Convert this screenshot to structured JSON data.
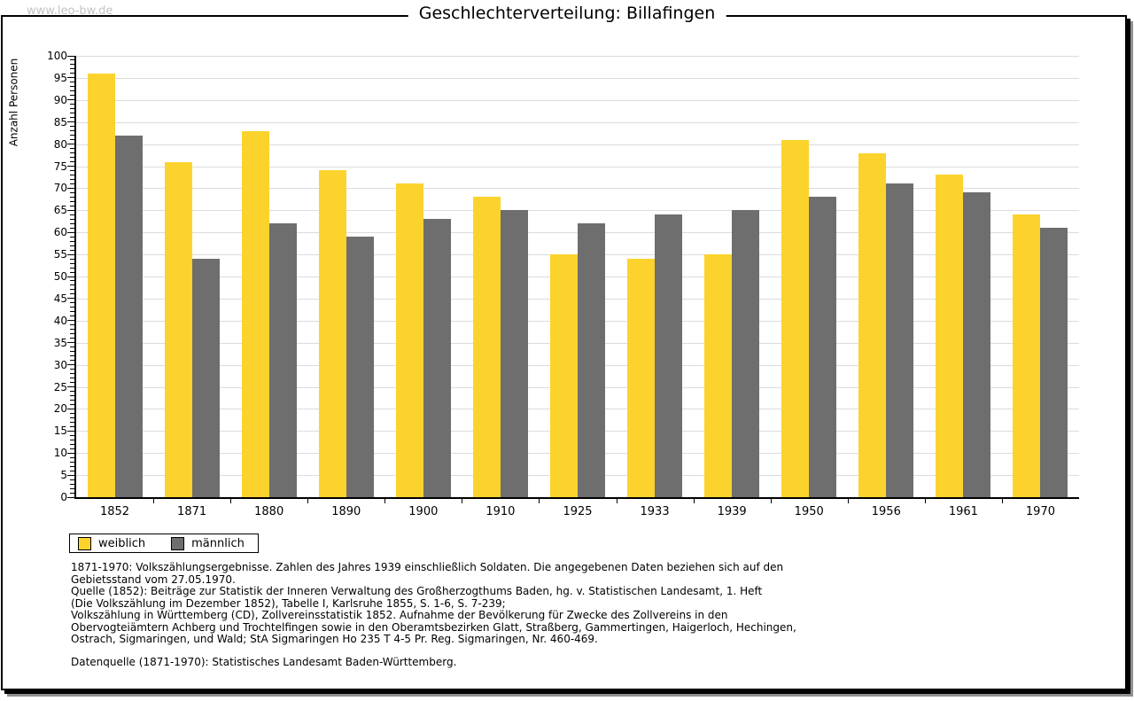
{
  "watermark": "www.leo-bw.de",
  "chart_data": {
    "type": "bar",
    "title": "Geschlechterverteilung: Billafingen",
    "categories": [
      "1852",
      "1871",
      "1880",
      "1890",
      "1900",
      "1910",
      "1925",
      "1933",
      "1939",
      "1950",
      "1956",
      "1961",
      "1970"
    ],
    "series": [
      {
        "name": "weiblich",
        "color": "#FCD32D",
        "values": [
          96,
          76,
          83,
          74,
          71,
          68,
          55,
          54,
          55,
          81,
          78,
          73,
          64
        ]
      },
      {
        "name": "männlich",
        "color": "#6E6E6E",
        "values": [
          82,
          54,
          62,
          59,
          63,
          65,
          62,
          64,
          65,
          68,
          71,
          69,
          61
        ]
      }
    ],
    "xlabel": "",
    "ylabel": "Anzahl Personen",
    "ylim": [
      0,
      100
    ],
    "ytick_step": 5,
    "minor_tick_step": 1,
    "grid": true,
    "gridline_color": "#dcdcdc",
    "legend_position": "bottom-left"
  },
  "footer": {
    "lines": [
      "1871-1970: Volkszählungsergebnisse. Zahlen des Jahres 1939 einschließlich Soldaten. Die angegebenen Daten beziehen sich auf den",
      "Gebietsstand vom 27.05.1970.",
      "Quelle (1852): Beiträge zur Statistik der Inneren Verwaltung des Großherzogthums Baden, hg. v. Statistischen Landesamt, 1. Heft",
      "(Die Volkszählung im Dezember 1852), Tabelle I, Karlsruhe 1855, S. 1-6, S. 7-239;",
      "Volkszählung in Württemberg (CD), Zollvereinsstatistik 1852. Aufnahme der Bevölkerung für Zwecke des Zollvereins in den",
      "Obervogteiämtern Achberg und Trochtelfingen sowie in den Oberamtsbezirken Glatt, Straßberg, Gammertingen, Haigerloch, Hechingen,",
      "Ostrach, Sigmaringen, und Wald; StA Sigmaringen Ho 235 T 4-5 Pr. Reg. Sigmaringen, Nr. 460-469."
    ],
    "datasource": "Datenquelle (1871-1970): Statistisches Landesamt Baden-Württemberg."
  }
}
